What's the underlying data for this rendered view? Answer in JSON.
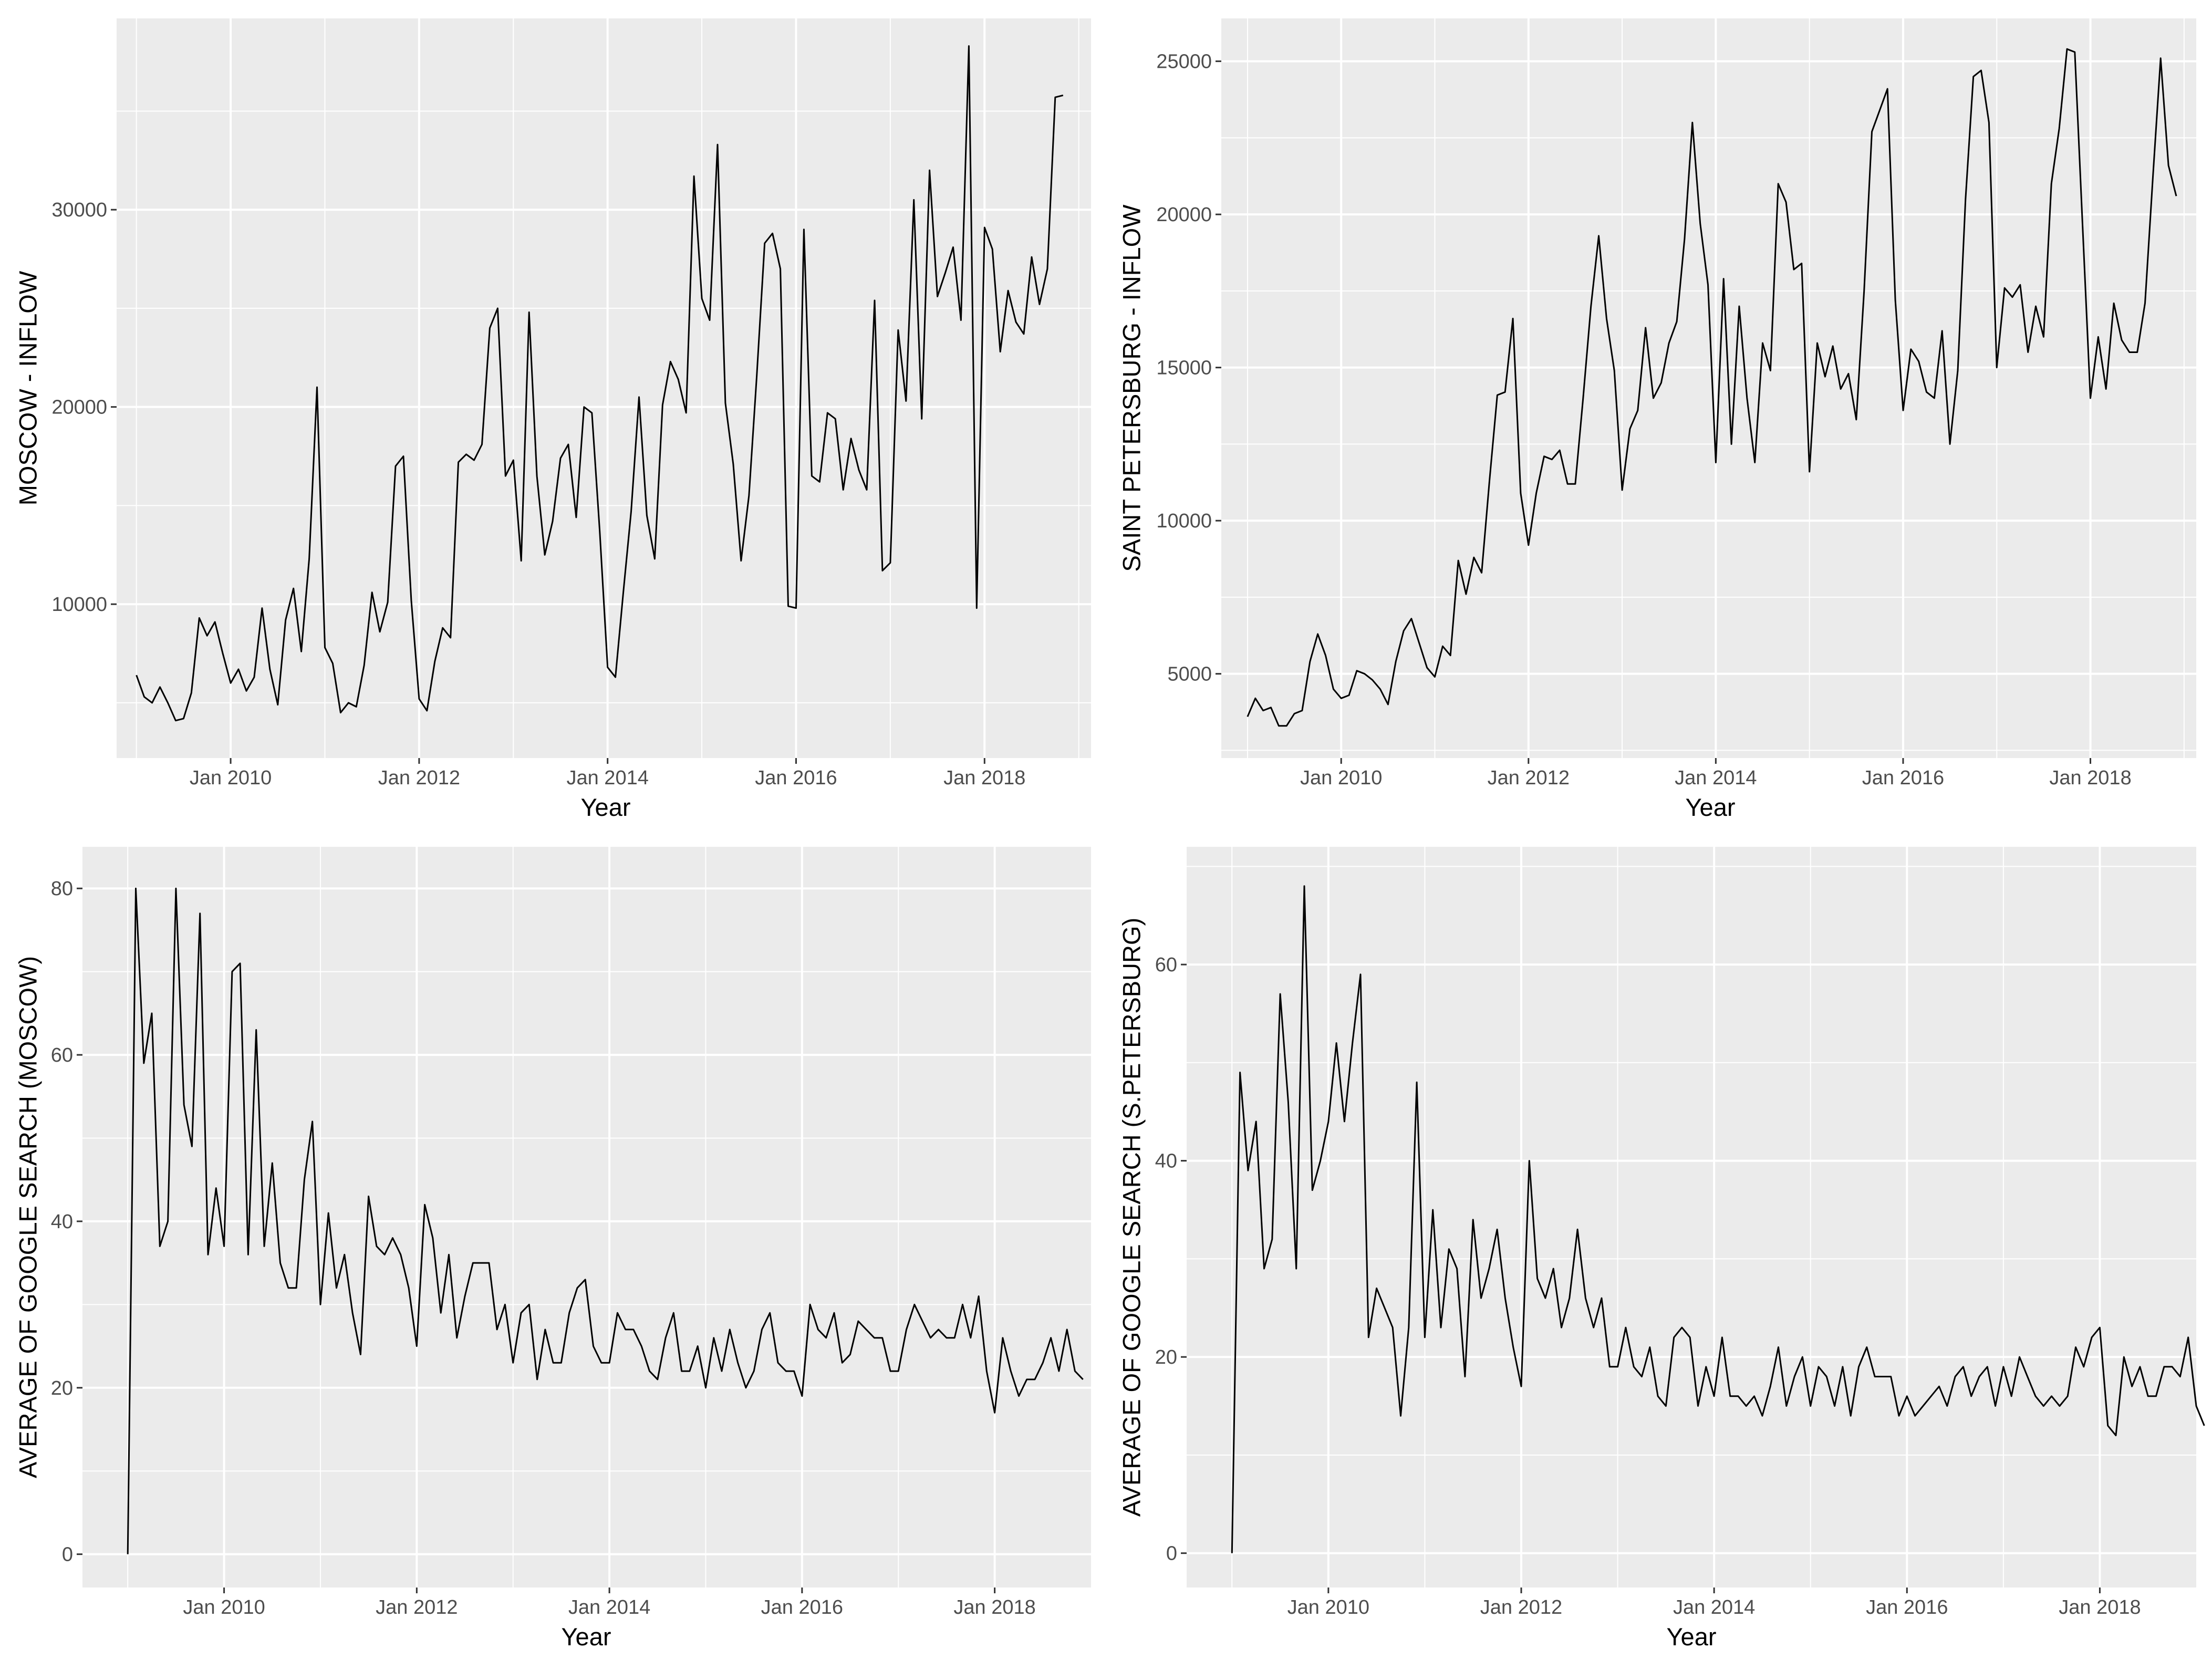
{
  "colors": {
    "panel_background": "#EBEBEB",
    "grid_major": "#FFFFFF",
    "line": "#000000",
    "tick_text": "#4D4D4D",
    "axis_text": "#000000"
  },
  "chart_data": [
    {
      "type": "line",
      "title": "",
      "xlabel": "Year",
      "ylabel": "MOSCOW - INFLOW",
      "xlim": [
        2008.79,
        2019.13
      ],
      "ylim": [
        2200,
        39700
      ],
      "xticks": [
        {
          "value": 2010,
          "label": "Jan 2010"
        },
        {
          "value": 2012,
          "label": "Jan 2012"
        },
        {
          "value": 2014,
          "label": "Jan 2014"
        },
        {
          "value": 2016,
          "label": "Jan 2016"
        },
        {
          "value": 2018,
          "label": "Jan 2018"
        }
      ],
      "yticks": [
        {
          "value": 10000,
          "label": "10000"
        },
        {
          "value": 20000,
          "label": "20000"
        },
        {
          "value": 30000,
          "label": "30000"
        }
      ],
      "x_start": 2009.0,
      "x_step": 0.0833333,
      "values": [
        6400,
        5300,
        5000,
        5800,
        5000,
        4100,
        4200,
        5500,
        9300,
        8400,
        9100,
        7500,
        6000,
        6700,
        5600,
        6300,
        9800,
        6700,
        4900,
        9200,
        10800,
        7600,
        12300,
        21000,
        7800,
        7000,
        4500,
        5000,
        4800,
        6900,
        10600,
        8600,
        10100,
        17000,
        17500,
        10200,
        5200,
        4600,
        7100,
        8800,
        8300,
        17200,
        17600,
        17300,
        18100,
        24000,
        25000,
        16500,
        17300,
        12200,
        24800,
        16500,
        12500,
        14200,
        17400,
        18100,
        14400,
        20000,
        19700,
        13700,
        6800,
        6300,
        10600,
        14700,
        20500,
        14500,
        12300,
        20100,
        22300,
        21400,
        19700,
        31700,
        25500,
        24400,
        33300,
        20200,
        17100,
        12200,
        15500,
        21600,
        28300,
        28800,
        27000,
        9900,
        9800,
        29000,
        16500,
        16200,
        19700,
        19400,
        15800,
        18400,
        16800,
        15800,
        25400,
        11700,
        12100,
        23900,
        20300,
        30500,
        19400,
        32000,
        25600,
        26800,
        28100,
        24400,
        38300,
        9800,
        29100,
        28000,
        22800,
        25900,
        24300,
        23700,
        27600,
        25200,
        27000,
        35700,
        35800
      ],
      "series": [
        {
          "name": "MOSCOW - INFLOW"
        }
      ]
    },
    {
      "type": "line",
      "title": "",
      "xlabel": "Year",
      "ylabel": "SAINT PETERSBURG - INFLOW",
      "xlim": [
        2008.72,
        2019.13
      ],
      "ylim": [
        2250,
        26400
      ],
      "xticks": [
        {
          "value": 2010,
          "label": "Jan 2010"
        },
        {
          "value": 2012,
          "label": "Jan 2012"
        },
        {
          "value": 2014,
          "label": "Jan 2014"
        },
        {
          "value": 2016,
          "label": "Jan 2016"
        },
        {
          "value": 2018,
          "label": "Jan 2018"
        }
      ],
      "yticks": [
        {
          "value": 5000,
          "label": "5000"
        },
        {
          "value": 10000,
          "label": "10000"
        },
        {
          "value": 15000,
          "label": "15000"
        },
        {
          "value": 20000,
          "label": "20000"
        },
        {
          "value": 25000,
          "label": "25000"
        }
      ],
      "x_start": 2009.0,
      "x_step": 0.0833333,
      "values": [
        3600,
        4200,
        3800,
        3900,
        3300,
        3300,
        3700,
        3800,
        5400,
        6300,
        5600,
        4500,
        4200,
        4300,
        5100,
        5000,
        4800,
        4500,
        4000,
        5400,
        6400,
        6800,
        6000,
        5200,
        4900,
        5900,
        5600,
        8700,
        7600,
        8800,
        8300,
        11300,
        14100,
        14200,
        16600,
        10900,
        9200,
        10900,
        12100,
        12000,
        12300,
        11200,
        11200,
        14000,
        17000,
        19300,
        16600,
        14900,
        11000,
        13000,
        13600,
        16300,
        14000,
        14500,
        15800,
        16500,
        19200,
        23000,
        19700,
        17700,
        11900,
        17900,
        12500,
        17000,
        14000,
        11900,
        15800,
        14900,
        21000,
        20400,
        18200,
        18400,
        11600,
        15800,
        14700,
        15700,
        14300,
        14800,
        13300,
        17500,
        22700,
        23400,
        24100,
        17200,
        13600,
        15600,
        15200,
        14200,
        14000,
        16200,
        12500,
        14900,
        20500,
        24500,
        24700,
        23000,
        15000,
        17600,
        17300,
        17700,
        15500,
        17000,
        16000,
        21000,
        22800,
        25400,
        25300,
        19600,
        14000,
        16000,
        14300,
        17100,
        15900,
        15500,
        15500,
        17100,
        21200,
        25100,
        21600,
        20600
      ],
      "series": [
        {
          "name": "SAINT PETERSBURG - INFLOW"
        }
      ]
    },
    {
      "type": "line",
      "title": "",
      "xlabel": "Year",
      "ylabel": "AVERAGE OF GOOGLE SEARCH (MOSCOW)",
      "xlim": [
        2008.53,
        2019.0
      ],
      "ylim": [
        -4.0,
        85.0
      ],
      "xticks": [
        {
          "value": 2010,
          "label": "Jan 2010"
        },
        {
          "value": 2012,
          "label": "Jan 2012"
        },
        {
          "value": 2014,
          "label": "Jan 2014"
        },
        {
          "value": 2016,
          "label": "Jan 2016"
        },
        {
          "value": 2018,
          "label": "Jan 2018"
        }
      ],
      "yticks": [
        {
          "value": 0,
          "label": "0"
        },
        {
          "value": 20,
          "label": "20"
        },
        {
          "value": 40,
          "label": "40"
        },
        {
          "value": 60,
          "label": "60"
        },
        {
          "value": 80,
          "label": "80"
        }
      ],
      "x_start": 2009.0,
      "x_step": 0.0833333,
      "values": [
        0,
        80,
        59,
        65,
        37,
        40,
        80,
        54,
        49,
        77,
        36,
        44,
        37,
        70,
        71,
        36,
        63,
        37,
        47,
        35,
        32,
        32,
        45,
        52,
        30,
        41,
        32,
        36,
        29,
        24,
        43,
        37,
        36,
        38,
        36,
        32,
        25,
        42,
        38,
        29,
        36,
        26,
        31,
        35,
        35,
        35,
        27,
        30,
        23,
        29,
        30,
        21,
        27,
        23,
        23,
        29,
        32,
        33,
        25,
        23,
        23,
        29,
        27,
        27,
        25,
        22,
        21,
        26,
        29,
        22,
        22,
        25,
        20,
        26,
        22,
        27,
        23,
        20,
        22,
        27,
        29,
        23,
        22,
        22,
        19,
        30,
        27,
        26,
        29,
        23,
        24,
        28,
        27,
        26,
        26,
        22,
        22,
        27,
        30,
        28,
        26,
        27,
        26,
        26,
        30,
        26,
        31,
        22,
        17,
        26,
        22,
        19,
        21,
        21,
        23,
        26,
        22,
        27,
        22,
        21
      ],
      "series": [
        {
          "name": "AVERAGE OF GOOGLE SEARCH (MOSCOW)"
        }
      ]
    },
    {
      "type": "line",
      "title": "",
      "xlabel": "Year",
      "ylabel": "AVERAGE OF GOOGLE SEARCH (S.PETERSBURG)",
      "xlim": [
        2008.53,
        2019.0
      ],
      "ylim": [
        -3.5,
        72.0
      ],
      "xticks": [
        {
          "value": 2010,
          "label": "Jan 2010"
        },
        {
          "value": 2012,
          "label": "Jan 2012"
        },
        {
          "value": 2014,
          "label": "Jan 2014"
        },
        {
          "value": 2016,
          "label": "Jan 2016"
        },
        {
          "value": 2018,
          "label": "Jan 2018"
        }
      ],
      "yticks": [
        {
          "value": 0,
          "label": "0"
        },
        {
          "value": 20,
          "label": "20"
        },
        {
          "value": 40,
          "label": "40"
        },
        {
          "value": 60,
          "label": "60"
        }
      ],
      "x_start": 2009.0,
      "x_step": 0.0833333,
      "values": [
        0,
        49,
        39,
        44,
        29,
        32,
        57,
        46,
        29,
        68,
        37,
        40,
        44,
        52,
        44,
        52,
        59,
        22,
        27,
        25,
        23,
        14,
        23,
        48,
        22,
        35,
        23,
        31,
        29,
        18,
        34,
        26,
        29,
        33,
        26,
        21,
        17,
        40,
        28,
        26,
        29,
        23,
        26,
        33,
        26,
        23,
        26,
        19,
        19,
        23,
        19,
        18,
        21,
        16,
        15,
        22,
        23,
        22,
        15,
        19,
        16,
        22,
        16,
        16,
        15,
        16,
        14,
        17,
        21,
        15,
        18,
        20,
        15,
        19,
        18,
        15,
        19,
        14,
        19,
        21,
        18,
        18,
        18,
        14,
        16,
        14,
        15,
        16,
        17,
        15,
        18,
        19,
        16,
        18,
        19,
        15,
        19,
        16,
        20,
        18,
        16,
        15,
        16,
        15,
        16,
        21,
        19,
        22,
        23,
        13,
        12,
        20,
        17,
        19,
        16,
        16,
        19,
        19,
        18,
        22,
        15,
        13
      ],
      "series": [
        {
          "name": "AVERAGE OF GOOGLE SEARCH (S.PETERSBURG)"
        }
      ]
    }
  ]
}
